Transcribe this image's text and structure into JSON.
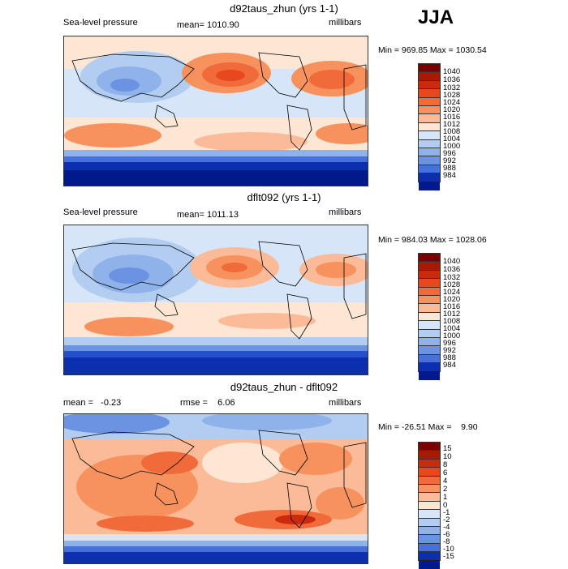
{
  "season": "JJA",
  "panels": [
    {
      "title": "d92taus_zhun (yrs 1-1)",
      "left_label": "Sea-level pressure",
      "center_label": "mean= 1010.90",
      "right_label": "millibars",
      "minmax": "Min = 969.85 Max = 1030.54",
      "levels": [
        "1040",
        "1036",
        "1032",
        "1028",
        "1024",
        "1020",
        "1016",
        "1012",
        "1008",
        "1004",
        "1000",
        "996",
        "992",
        "988",
        "984"
      ]
    },
    {
      "title": "dflt092 (yrs 1-1)",
      "left_label": "Sea-level pressure",
      "center_label": "mean= 1011.13",
      "right_label": "millibars",
      "minmax": "Min = 984.03 Max = 1028.06",
      "levels": [
        "1040",
        "1036",
        "1032",
        "1028",
        "1024",
        "1020",
        "1016",
        "1012",
        "1008",
        "1004",
        "1000",
        "996",
        "992",
        "988",
        "984"
      ]
    },
    {
      "title": "d92taus_zhun - dflt092",
      "left_label": "mean =   -0.23",
      "center_label": "rmse =    6.06",
      "right_label": "millibars",
      "minmax": "Min = -26.51 Max =    9.90",
      "levels": [
        "15",
        "10",
        "8",
        "6",
        "4",
        "2",
        "1",
        "0",
        "-1",
        "-2",
        "-4",
        "-6",
        "-8",
        "-10",
        "-15"
      ]
    }
  ],
  "colors": [
    "#7a0000",
    "#a41b00",
    "#cc2a0c",
    "#e8481e",
    "#f06a3a",
    "#f7925e",
    "#fbbb98",
    "#fde6d4",
    "#ffffff",
    "#d6e6f8",
    "#b3cdf0",
    "#8fb2ea",
    "#6b93e2",
    "#4670da",
    "#2450cc",
    "#0c2fb0",
    "#001a8c"
  ]
}
